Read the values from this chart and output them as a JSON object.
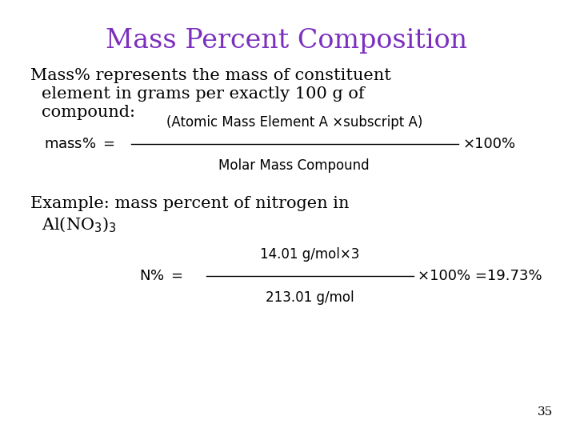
{
  "title": "Mass Percent Composition",
  "title_color": "#7B2FBE",
  "title_fontsize": 24,
  "bg_color": "#FFFFFF",
  "body_text_color": "#000000",
  "body_fontsize": 15,
  "formula_fontsize": 13,
  "slide_number": "35",
  "para1_line1": "Mass% represents the mass of constituent",
  "para1_line2": "element in grams per exactly 100 g of",
  "para1_line3": "compound:",
  "formula1_lhs": "mass% =",
  "formula1_num": "(Atomic Mass Element A ×subscript A)",
  "formula1_den": "Molar Mass Compound",
  "formula1_rhs": "×100%",
  "para2_line1": "Example: mass percent of nitrogen in",
  "para2_line2": "Al(NO$_3$)$_3$",
  "formula2_lhs": "N% =",
  "formula2_num": "14.01 g/mol×3",
  "formula2_den": "213.01 g/mol",
  "formula2_rhs": "×100% =19.73%"
}
